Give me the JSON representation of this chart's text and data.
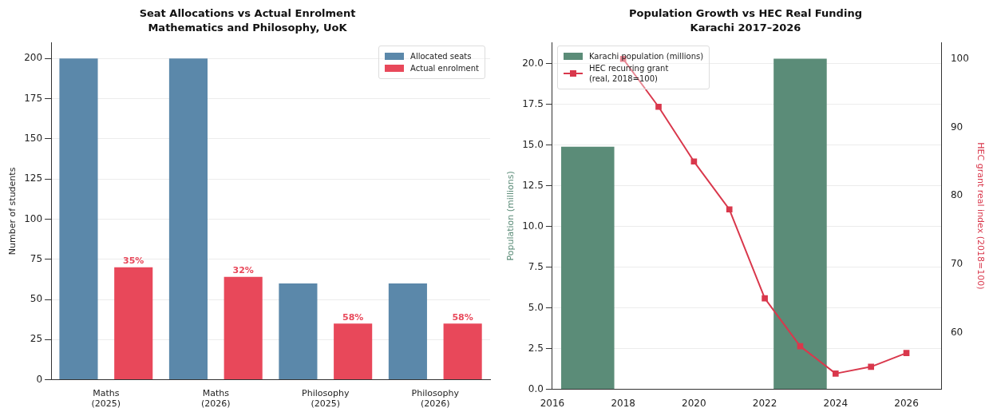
{
  "chart_data": [
    {
      "type": "bar",
      "title": "Seat Allocations vs Actual Enrolment",
      "subtitle": "Mathematics and Philosophy, UoK",
      "ylabel": "Number of students",
      "categories": [
        "Maths\n(2025)",
        "Maths\n(2026)",
        "Philosophy\n(2025)",
        "Philosophy\n(2026)"
      ],
      "series": [
        {
          "name": "Allocated seats",
          "color": "#5b88aa",
          "values": [
            200,
            200,
            60,
            60
          ]
        },
        {
          "name": "Actual enrolment",
          "color": "#e8485a",
          "values": [
            70,
            64,
            35,
            35
          ]
        }
      ],
      "annotations": [
        "35%",
        "32%",
        "58%",
        "58%"
      ],
      "ylim": [
        0,
        210
      ],
      "yticks": [
        0,
        25,
        50,
        75,
        100,
        125,
        150,
        175,
        200
      ],
      "grid": "y",
      "legend": "top right"
    },
    {
      "type": "bar",
      "title": "Population Growth vs HEC Real Funding",
      "subtitle": "Karachi 2017–2026",
      "ylabel": "Population (millions)",
      "y2label": "HEC grant real index (2018=100)",
      "series": [
        {
          "name": "Karachi population (millions)",
          "color": "#5b8c78",
          "x": [
            2017,
            2023
          ],
          "values": [
            14.9,
            20.3
          ]
        },
        {
          "name": "HEC recurring grant\n(real, 2018=100)",
          "type": "line",
          "axis": "y2",
          "color": "#d9384c",
          "x": [
            2018,
            2019,
            2020,
            2021,
            2022,
            2023,
            2024,
            2025,
            2026
          ],
          "values": [
            100,
            93,
            85,
            78,
            65,
            58,
            54,
            55,
            57
          ]
        }
      ],
      "xlim": [
        2016,
        2027
      ],
      "xticks": [
        2016,
        2018,
        2020,
        2022,
        2024,
        2026
      ],
      "ylim": [
        0,
        21.3
      ],
      "yticks": [
        {
          "value": 0,
          "label": "0.0"
        },
        {
          "value": 2.5,
          "label": "2.5"
        },
        {
          "value": 5,
          "label": "5.0"
        },
        {
          "value": 7.5,
          "label": "7.5"
        },
        {
          "value": 10,
          "label": "10.0"
        },
        {
          "value": 12.5,
          "label": "12.5"
        },
        {
          "value": 15,
          "label": "15.0"
        },
        {
          "value": 17.5,
          "label": "17.5"
        },
        {
          "value": 20,
          "label": "20.0"
        }
      ],
      "y2lim": [
        51.7,
        102.4
      ],
      "y2ticks": [
        60,
        70,
        80,
        90,
        100
      ],
      "grid": "y",
      "legend": "top left",
      "marker": "square",
      "line_style": "solid"
    }
  ]
}
